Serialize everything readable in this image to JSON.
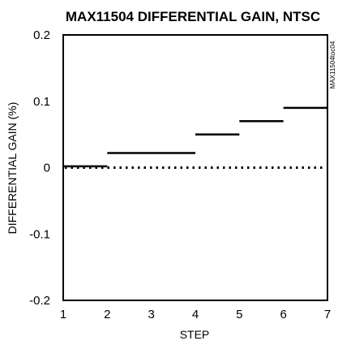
{
  "chart_data": {
    "type": "line",
    "title": "MAX11504 DIFFERENTIAL GAIN, NTSC",
    "xlabel": "STEP",
    "ylabel": "DIFFERENTIAL GAIN (%)",
    "side_note": "MAX11504toc04",
    "xlim": [
      1,
      7
    ],
    "ylim": [
      -0.2,
      0.2
    ],
    "x_ticks": [
      "1",
      "2",
      "3",
      "4",
      "5",
      "6",
      "7"
    ],
    "y_ticks": [
      "0.2",
      "0.1",
      "0",
      "-0.1",
      "-0.2"
    ],
    "x_tick_values": [
      1,
      2,
      3,
      4,
      5,
      6,
      7
    ],
    "y_tick_values": [
      0.2,
      0.1,
      0,
      -0.1,
      -0.2
    ],
    "series": [
      {
        "segments": [
          {
            "x": [
              1,
              2
            ],
            "y": 0.002
          },
          {
            "x": [
              2,
              4
            ],
            "y": 0.022
          },
          {
            "x": [
              4,
              5
            ],
            "y": 0.05
          },
          {
            "x": [
              5,
              6
            ],
            "y": 0.07
          },
          {
            "x": [
              6,
              7
            ],
            "y": 0.09
          }
        ]
      }
    ],
    "reference_line": {
      "y": 0,
      "style": "dotted"
    },
    "grid": false,
    "colors": {
      "line": "#000000",
      "frame": "#000000"
    }
  }
}
